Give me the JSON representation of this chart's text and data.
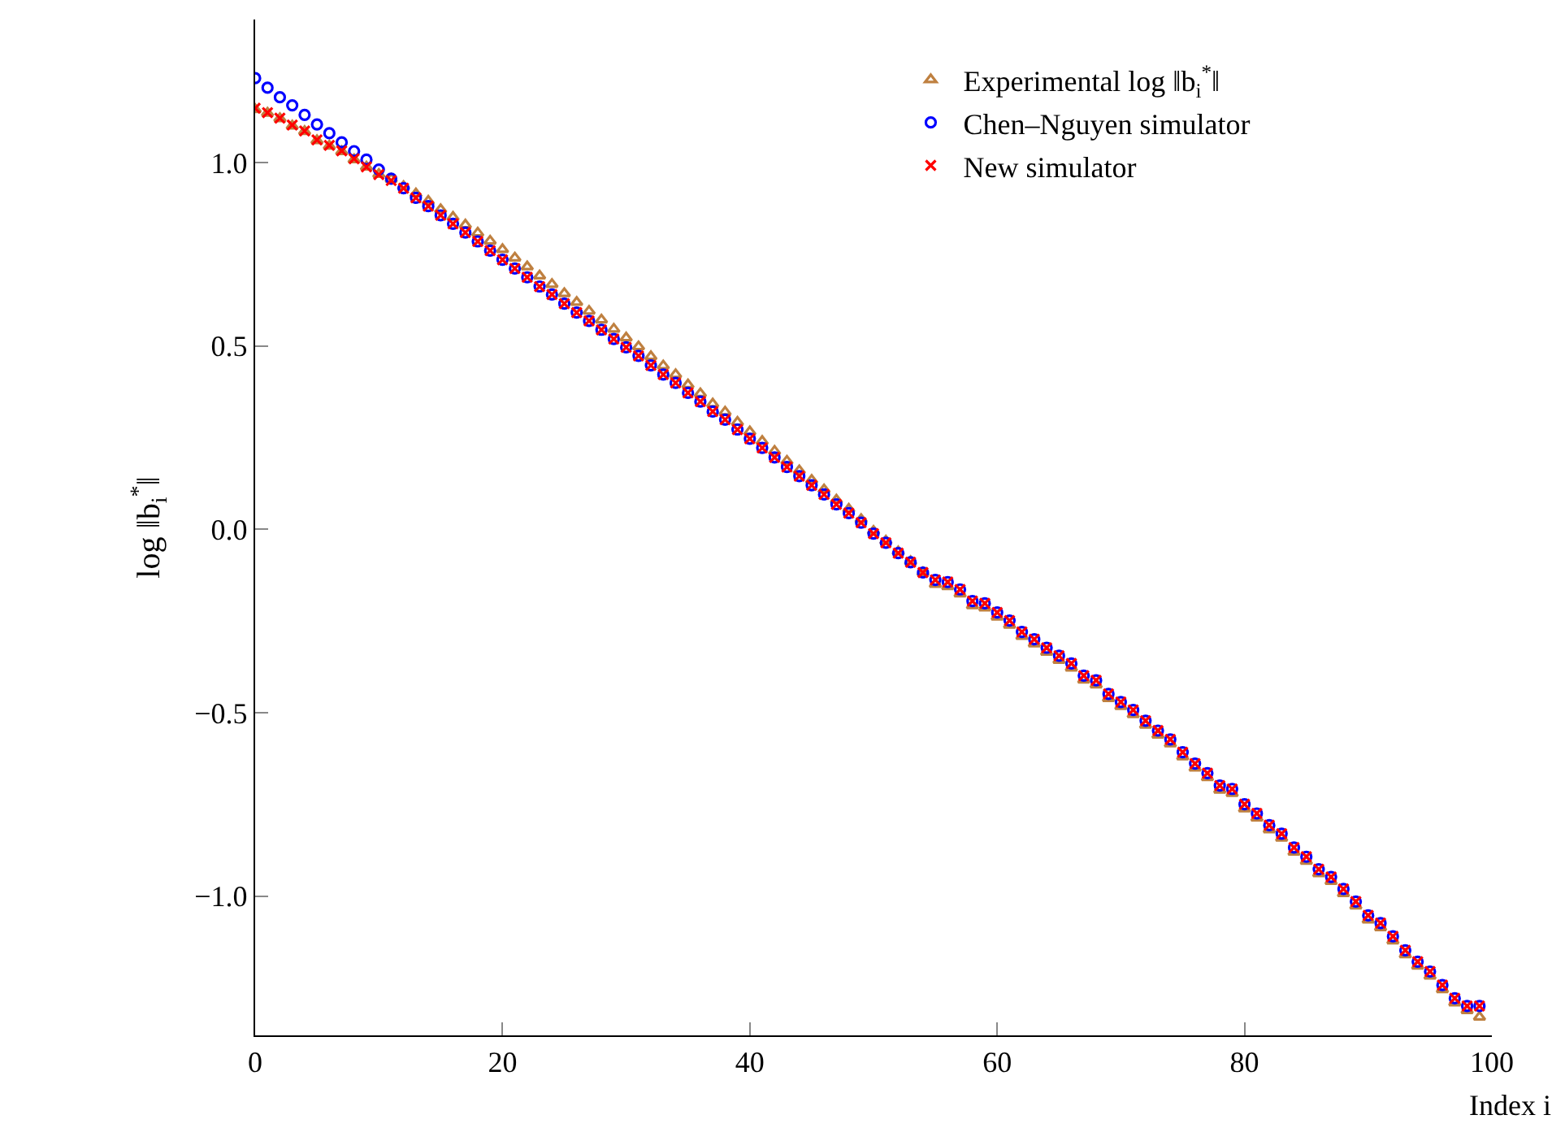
{
  "chart_data": {
    "type": "scatter",
    "xlabel": "Index i",
    "ylabel": "log ‖b$_{i}$$^{*}$‖",
    "x": [
      0,
      1,
      2,
      3,
      4,
      5,
      6,
      7,
      8,
      9,
      10,
      11,
      12,
      13,
      14,
      15,
      16,
      17,
      18,
      19,
      20,
      21,
      22,
      23,
      24,
      25,
      26,
      27,
      28,
      29,
      30,
      31,
      32,
      33,
      34,
      35,
      36,
      37,
      38,
      39,
      40,
      41,
      42,
      43,
      44,
      45,
      46,
      47,
      48,
      49,
      50,
      51,
      52,
      53,
      54,
      55,
      56,
      57,
      58,
      59,
      60,
      61,
      62,
      63,
      64,
      65,
      66,
      67,
      68,
      69,
      70,
      71,
      72,
      73,
      74,
      75,
      76,
      77,
      78,
      79,
      80,
      81,
      82,
      83,
      84,
      85,
      86,
      87,
      88,
      89,
      90,
      91,
      92,
      93,
      94,
      95,
      96,
      97,
      98,
      99
    ],
    "series": [
      {
        "name": "Experimental log ‖b$_{i}$$^{*}$‖",
        "color": "#bf8040",
        "marker": "triangle",
        "values": [
          1.145,
          1.135,
          1.12,
          1.1,
          1.085,
          1.06,
          1.045,
          1.03,
          1.008,
          0.988,
          0.968,
          0.955,
          0.935,
          0.915,
          0.895,
          0.872,
          0.851,
          0.83,
          0.808,
          0.786,
          0.763,
          0.74,
          0.716,
          0.691,
          0.668,
          0.643,
          0.619,
          0.595,
          0.571,
          0.546,
          0.522,
          0.498,
          0.471,
          0.446,
          0.422,
          0.394,
          0.37,
          0.342,
          0.32,
          0.292,
          0.266,
          0.24,
          0.213,
          0.186,
          0.16,
          0.134,
          0.108,
          0.08,
          0.055,
          0.027,
          -0.005,
          -0.032,
          -0.061,
          -0.088,
          -0.118,
          -0.15,
          -0.156,
          -0.176,
          -0.208,
          -0.214,
          -0.239,
          -0.261,
          -0.292,
          -0.312,
          -0.335,
          -0.357,
          -0.378,
          -0.411,
          -0.424,
          -0.461,
          -0.483,
          -0.505,
          -0.534,
          -0.561,
          -0.585,
          -0.62,
          -0.651,
          -0.677,
          -0.711,
          -0.72,
          -0.762,
          -0.787,
          -0.819,
          -0.842,
          -0.88,
          -0.905,
          -0.939,
          -0.96,
          -0.993,
          -1.027,
          -1.065,
          -1.086,
          -1.122,
          -1.16,
          -1.191,
          -1.218,
          -1.255,
          -1.291,
          -1.312,
          -1.33
        ]
      },
      {
        "name": "Chen–Nguyen simulator",
        "color": "#0000ff",
        "marker": "circle",
        "values": [
          1.23,
          1.204,
          1.178,
          1.156,
          1.13,
          1.104,
          1.08,
          1.055,
          1.031,
          1.008,
          0.981,
          0.956,
          0.93,
          0.904,
          0.881,
          0.856,
          0.833,
          0.809,
          0.785,
          0.76,
          0.735,
          0.711,
          0.687,
          0.662,
          0.64,
          0.615,
          0.591,
          0.568,
          0.544,
          0.519,
          0.496,
          0.473,
          0.447,
          0.422,
          0.399,
          0.372,
          0.348,
          0.321,
          0.299,
          0.272,
          0.247,
          0.222,
          0.196,
          0.17,
          0.145,
          0.12,
          0.095,
          0.068,
          0.044,
          0.018,
          -0.012,
          -0.037,
          -0.065,
          -0.09,
          -0.118,
          -0.138,
          -0.144,
          -0.164,
          -0.196,
          -0.202,
          -0.227,
          -0.249,
          -0.28,
          -0.3,
          -0.323,
          -0.345,
          -0.366,
          -0.399,
          -0.412,
          -0.449,
          -0.471,
          -0.493,
          -0.522,
          -0.549,
          -0.573,
          -0.608,
          -0.639,
          -0.665,
          -0.699,
          -0.708,
          -0.75,
          -0.775,
          -0.807,
          -0.83,
          -0.868,
          -0.893,
          -0.927,
          -0.948,
          -0.981,
          -1.015,
          -1.053,
          -1.074,
          -1.11,
          -1.148,
          -1.179,
          -1.206,
          -1.243,
          -1.279,
          -1.3,
          -1.3
        ]
      },
      {
        "name": "New simulator",
        "color": "#ff0000",
        "marker": "cross",
        "values": [
          1.148,
          1.136,
          1.121,
          1.102,
          1.086,
          1.062,
          1.047,
          1.032,
          1.01,
          0.988,
          0.967,
          0.951,
          0.93,
          0.904,
          0.881,
          0.856,
          0.833,
          0.809,
          0.785,
          0.76,
          0.735,
          0.711,
          0.687,
          0.662,
          0.64,
          0.615,
          0.591,
          0.568,
          0.544,
          0.519,
          0.496,
          0.473,
          0.447,
          0.422,
          0.399,
          0.372,
          0.348,
          0.321,
          0.299,
          0.272,
          0.247,
          0.222,
          0.196,
          0.17,
          0.145,
          0.12,
          0.095,
          0.068,
          0.044,
          0.018,
          -0.012,
          -0.037,
          -0.065,
          -0.09,
          -0.118,
          -0.138,
          -0.144,
          -0.164,
          -0.196,
          -0.202,
          -0.227,
          -0.249,
          -0.28,
          -0.3,
          -0.323,
          -0.345,
          -0.366,
          -0.399,
          -0.412,
          -0.449,
          -0.471,
          -0.493,
          -0.522,
          -0.549,
          -0.573,
          -0.608,
          -0.639,
          -0.665,
          -0.699,
          -0.708,
          -0.75,
          -0.775,
          -0.807,
          -0.83,
          -0.868,
          -0.893,
          -0.927,
          -0.948,
          -0.981,
          -1.015,
          -1.053,
          -1.074,
          -1.11,
          -1.148,
          -1.179,
          -1.206,
          -1.243,
          -1.279,
          -1.3,
          -1.3
        ]
      }
    ],
    "xlim": [
      0,
      100
    ],
    "xticks": [
      0,
      20,
      40,
      60,
      80,
      100
    ],
    "ylim": [
      -1.38,
      1.39
    ],
    "yticks": [
      {
        "value": -1,
        "label": "−1.0"
      },
      {
        "value": -0.5,
        "label": "−0.5"
      },
      {
        "value": 0,
        "label": "0.0"
      },
      {
        "value": 0.5,
        "label": "0.5"
      },
      {
        "value": 1,
        "label": "1.0"
      }
    ],
    "grid": false,
    "legend": "top right"
  }
}
